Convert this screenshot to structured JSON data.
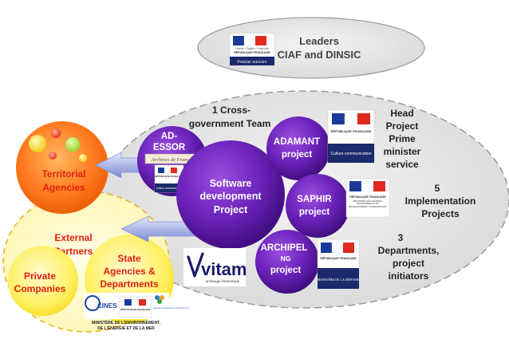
{
  "leaders": {
    "text_line1": "Leaders",
    "text_line2": "CIAF and DINSIC",
    "logo_motto": "Liberté • Égalité • Fraternité",
    "logo_republic": "RÉPUBLIQUE FRANÇAISE",
    "logo_caption": "Premier ministre"
  },
  "team": {
    "label_line1": "1 Cross-",
    "label_line2": "government Team"
  },
  "center": {
    "line1": "Software",
    "line2": "development",
    "line3": "Project"
  },
  "projects": {
    "adessor_line1": "AD-",
    "adessor_line2": "ESSOR",
    "adessor_logo": "Archives de France",
    "adessor_logo2": "Culture communication",
    "adamant_line1": "ADAMANT",
    "adamant_line2": "project",
    "saphir_line1": "SAPHIR",
    "saphir_line2": "project",
    "archipel_line1": "ARCHIPEL",
    "archipel_line2": "NG",
    "archipel_line3": "project"
  },
  "right_labels": {
    "head_line1": "Head",
    "head_line2": "Project",
    "head_line3": "Prime",
    "head_line4": "minister",
    "head_line5": "service",
    "impl_line1": "5",
    "impl_line2": "Implementation",
    "impl_line3": "Projects",
    "dept_line1": "3",
    "dept_line2": "Departments,",
    "dept_line3": "project",
    "dept_line4": "initiators"
  },
  "logos": {
    "republic": "RÉPUBLIQUE FRANÇAISE",
    "culture": "Culture communication",
    "affaires": "MINISTÈRE DES AFFAIRES ÉTRANGÈRES ET DU DÉVELOPPEMENT INTERNATIONAL",
    "defense": "MINISTÈRE DE LA DÉFENSE",
    "vitam": "vitam",
    "vitam_tagline": "archivage électronique",
    "cines": "CINES",
    "environnement_line1": "MINISTÈRE DE L'ENVIRONNEMENT,",
    "environnement_line2": "DE L'ÉNERGIE ET DE LA MER",
    "agence": "Agence de Services et de Paiement"
  },
  "left": {
    "territorial_line1": "Territorial",
    "territorial_line2": "Agencies",
    "external_line1": "External",
    "external_line2": "Partners",
    "private_line1": "Private",
    "private_line2": "Companies",
    "state_line1": "State",
    "state_line2": "Agencies &",
    "state_line3": "Departments"
  },
  "colors": {
    "purple": "#5a1a9a",
    "orange": "#f06a10",
    "yellow": "#ffee55",
    "red_text": "#e02010",
    "navy": "#1a1a6a"
  }
}
